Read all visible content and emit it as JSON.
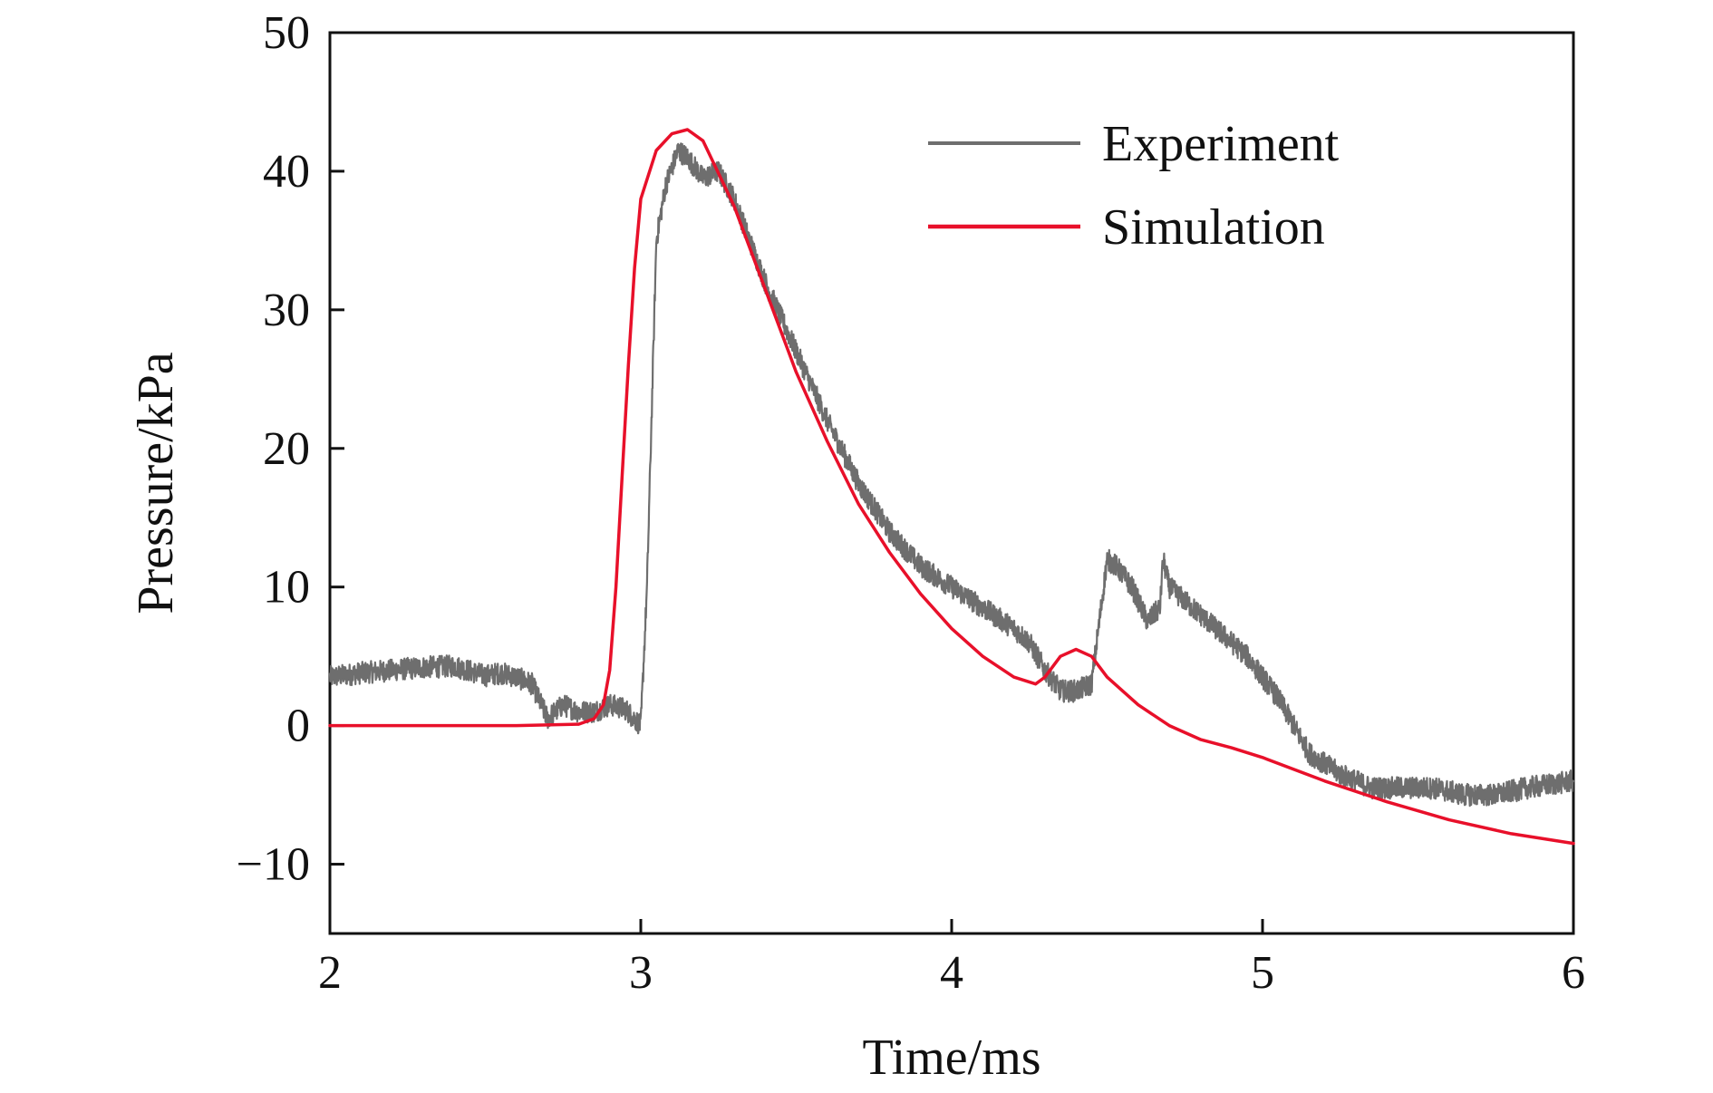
{
  "chart_data": {
    "type": "line",
    "title": "",
    "xlabel": "Time/ms",
    "ylabel": "Pressure/kPa",
    "xlim": [
      2,
      6
    ],
    "ylim": [
      -15,
      50
    ],
    "x_ticks": [
      2,
      3,
      4,
      5,
      6
    ],
    "y_ticks": [
      -10,
      0,
      10,
      20,
      30,
      40,
      50
    ],
    "x_tick_labels": [
      "2",
      "3",
      "4",
      "5",
      "6"
    ],
    "y_tick_labels": [
      "−10",
      "0",
      "10",
      "20",
      "30",
      "40",
      "50"
    ],
    "grid": false,
    "legend_position": "top-right",
    "series": [
      {
        "name": "Experiment",
        "color": "#6e6e6e",
        "noisy": true,
        "x": [
          2.0,
          2.1,
          2.2,
          2.3,
          2.4,
          2.5,
          2.55,
          2.6,
          2.65,
          2.7,
          2.75,
          2.8,
          2.85,
          2.9,
          2.95,
          3.0,
          3.02,
          3.05,
          3.08,
          3.12,
          3.15,
          3.2,
          3.25,
          3.3,
          3.4,
          3.5,
          3.6,
          3.7,
          3.8,
          3.9,
          4.0,
          4.1,
          4.2,
          4.25,
          4.3,
          4.35,
          4.4,
          4.45,
          4.5,
          4.53,
          4.58,
          4.63,
          4.67,
          4.68,
          4.7,
          4.75,
          4.85,
          4.95,
          5.05,
          5.15,
          5.25,
          5.35,
          5.45,
          5.55,
          5.65,
          5.75,
          5.85,
          6.0
        ],
        "y": [
          3.5,
          3.8,
          4.0,
          4.2,
          4.3,
          3.6,
          3.8,
          3.5,
          3.0,
          0.5,
          1.5,
          1.0,
          1.0,
          1.5,
          1.2,
          0.0,
          10.0,
          35.0,
          39.0,
          41.5,
          41.0,
          39.5,
          40.0,
          38.0,
          32.0,
          27.0,
          22.0,
          17.5,
          14.0,
          11.5,
          10.0,
          8.5,
          7.0,
          6.0,
          4.0,
          2.5,
          2.5,
          3.0,
          12.0,
          11.5,
          10.0,
          7.5,
          8.5,
          12.0,
          10.0,
          9.0,
          7.0,
          5.0,
          2.0,
          -2.0,
          -3.5,
          -4.5,
          -4.5,
          -4.5,
          -5.0,
          -5.0,
          -4.5,
          -4.0
        ]
      },
      {
        "name": "Simulation",
        "color": "#e8102a",
        "noisy": false,
        "x": [
          2.0,
          2.6,
          2.8,
          2.85,
          2.88,
          2.9,
          2.92,
          2.94,
          2.96,
          2.98,
          3.0,
          3.05,
          3.1,
          3.15,
          3.2,
          3.3,
          3.4,
          3.5,
          3.6,
          3.7,
          3.8,
          3.9,
          4.0,
          4.1,
          4.2,
          4.27,
          4.3,
          4.35,
          4.4,
          4.45,
          4.5,
          4.6,
          4.7,
          4.8,
          4.9,
          5.0,
          5.2,
          5.4,
          5.6,
          5.8,
          6.0
        ],
        "y": [
          0.0,
          0.0,
          0.1,
          0.5,
          1.5,
          4.0,
          10.0,
          18.0,
          26.0,
          33.0,
          38.0,
          41.5,
          42.7,
          43.0,
          42.2,
          37.5,
          31.5,
          25.5,
          20.5,
          16.0,
          12.5,
          9.5,
          7.0,
          5.0,
          3.5,
          3.0,
          3.5,
          5.0,
          5.5,
          5.0,
          3.5,
          1.5,
          0.0,
          -1.0,
          -1.6,
          -2.3,
          -4.0,
          -5.5,
          -6.8,
          -7.8,
          -8.5
        ]
      }
    ]
  }
}
